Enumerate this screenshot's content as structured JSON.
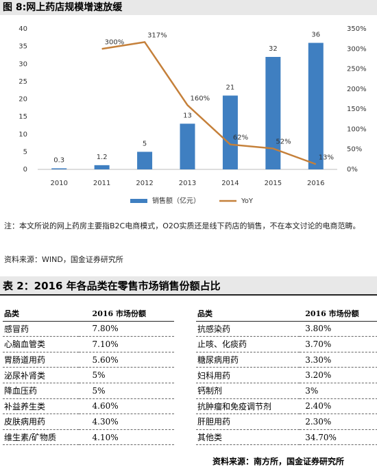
{
  "chart_data": {
    "type": "bar",
    "title": "图 8:网上药店规模增速放缓",
    "categories": [
      "2010",
      "2011",
      "2012",
      "2013",
      "2014",
      "2015",
      "2016"
    ],
    "series": [
      {
        "name": "销售额（亿元）",
        "color": "#3f7fc1",
        "values": [
          0.3,
          1.2,
          5,
          13,
          21,
          32,
          36
        ]
      },
      {
        "name": "YoY",
        "type": "line",
        "axis": "y2",
        "color": "#c5803a",
        "values": [
          null,
          300,
          317,
          160,
          62,
          52,
          13
        ],
        "value_labels": [
          null,
          "300%",
          "317%",
          "160%",
          "62%",
          "52%",
          "13%"
        ]
      }
    ],
    "ylim": [
      0,
      40
    ],
    "yticks": [
      0,
      5,
      10,
      15,
      20,
      25,
      30,
      35,
      40
    ],
    "y2lim": [
      0,
      350
    ],
    "y2ticks": [
      {
        "value": 0,
        "label": "0%"
      },
      {
        "value": 50,
        "label": "50%"
      },
      {
        "value": 100,
        "label": "100%"
      },
      {
        "value": 150,
        "label": "150%"
      },
      {
        "value": 200,
        "label": "200%"
      },
      {
        "value": 250,
        "label": "250%"
      },
      {
        "value": 300,
        "label": "300%"
      },
      {
        "value": 350,
        "label": "350%"
      }
    ]
  },
  "notes": "注：本文所说的网上药房主要指B2C电商模式，O2O实质还是线下药店的销售，不在本文讨论的电商范畴。",
  "source": "资料来源：WIND，国金证券研究所",
  "table_title": "表 2：2016 年各品类在零售市场销售份额占比",
  "tables": [
    {
      "header": [
        "品类",
        "2016 市场份额"
      ],
      "rows": [
        [
          "感冒药",
          "7.80%"
        ],
        [
          "心脑血管类",
          "7.10%"
        ],
        [
          "胃肠道用药",
          "5.60%"
        ],
        [
          "泌尿补肾类",
          "5%"
        ],
        [
          "降血压药",
          "5%"
        ],
        [
          "补益养生类",
          "4.60%"
        ],
        [
          "皮肤病用药",
          "4.30%"
        ],
        [
          "维生素/矿物质",
          "4.10%"
        ]
      ]
    },
    {
      "header": [
        "品类",
        "2016 市场份额"
      ],
      "rows": [
        [
          "抗感染药",
          "3.80%"
        ],
        [
          "止咳、化痰药",
          "3.70%"
        ],
        [
          "糖尿病用药",
          "3.30%"
        ],
        [
          "妇科用药",
          "3.20%"
        ],
        [
          "钙制剂",
          "3%"
        ],
        [
          "抗肿瘤和免疫调节剂",
          "2.40%"
        ],
        [
          "肝胆用药",
          "2.30%"
        ],
        [
          "其他类",
          "34.70%"
        ]
      ]
    }
  ],
  "table_source": "资料来源：南方所，国金证券研究所"
}
